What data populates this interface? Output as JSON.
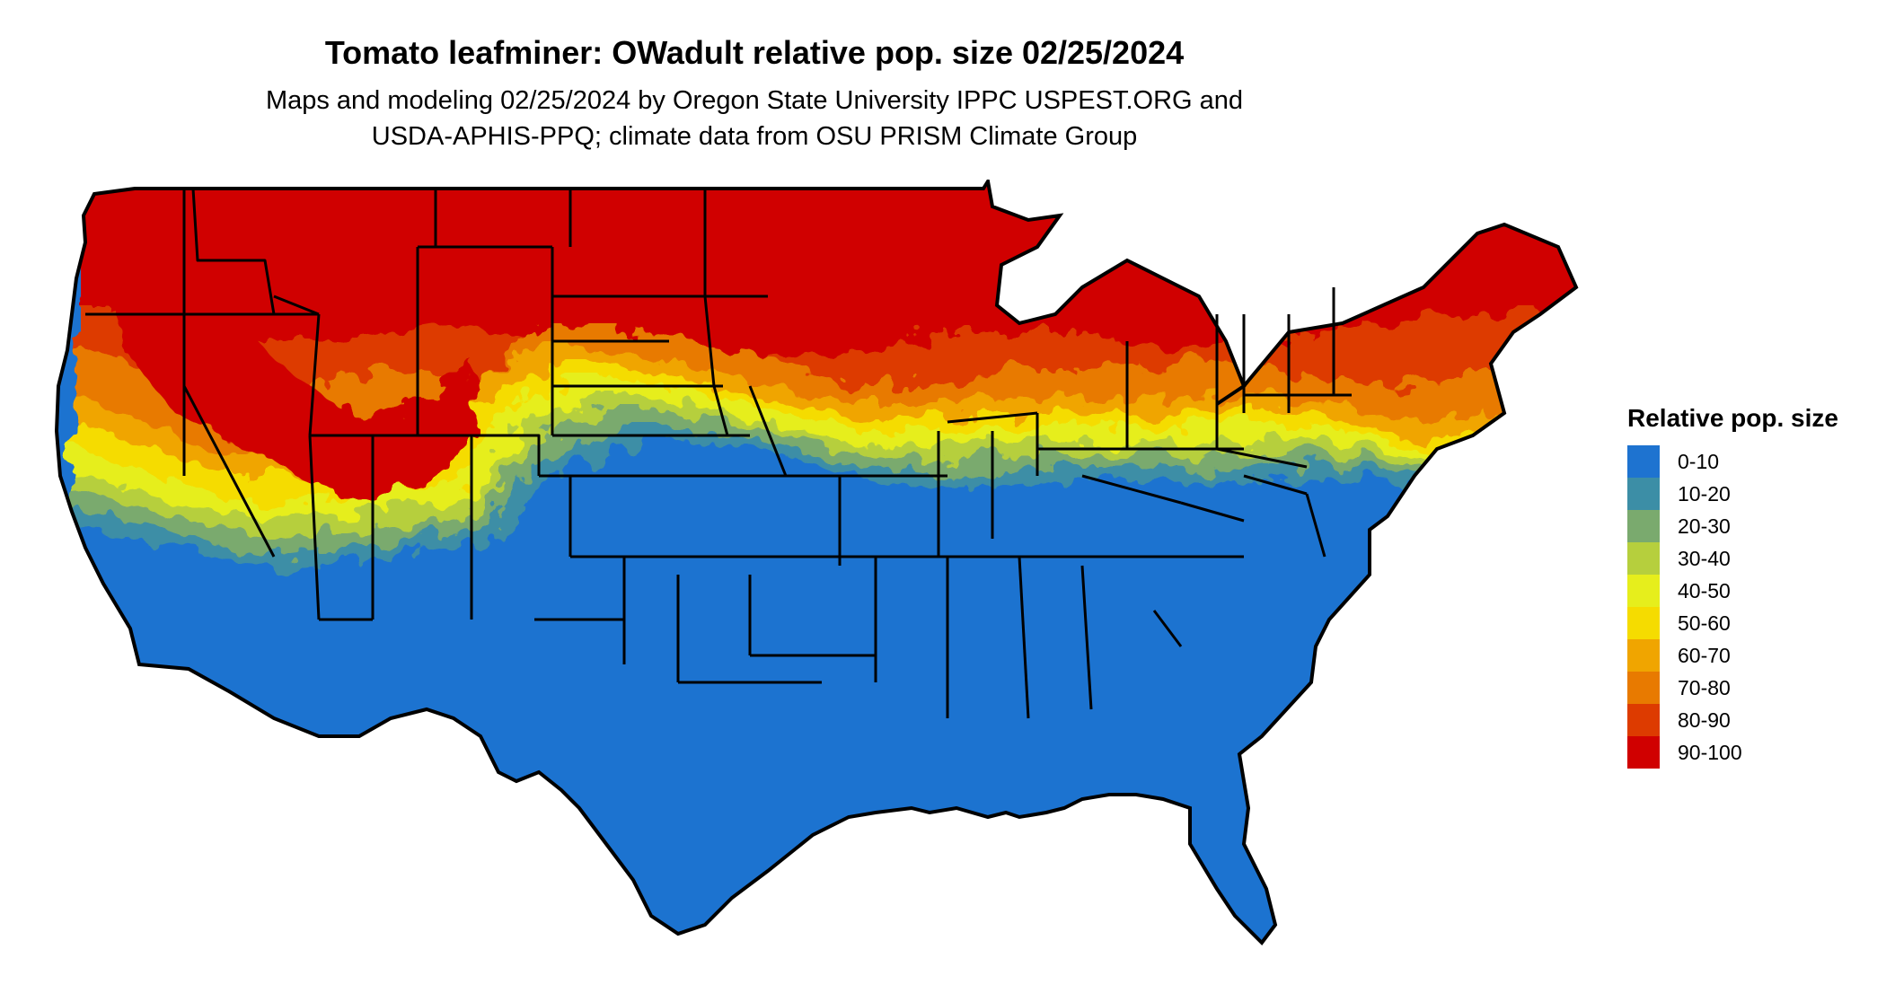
{
  "title": "Tomato leafminer: OWadult relative pop. size 02/25/2024",
  "subtitle_line1": "Maps and modeling 02/25/2024 by Oregon State University IPPC USPEST.ORG and",
  "subtitle_line2": "USDA-APHIS-PPQ; climate data from OSU PRISM Climate Group",
  "legend": {
    "title": "Relative pop. size",
    "items": [
      {
        "label": "0-10",
        "color": "#1e73d0"
      },
      {
        "label": "10-20",
        "color": "#3c8ea6"
      },
      {
        "label": "20-30",
        "color": "#7aaa6e"
      },
      {
        "label": "30-40",
        "color": "#b6cf3d"
      },
      {
        "label": "40-50",
        "color": "#e6ee1c"
      },
      {
        "label": "50-60",
        "color": "#f5dc00"
      },
      {
        "label": "60-70",
        "color": "#f0a500"
      },
      {
        "label": "70-80",
        "color": "#e87a00"
      },
      {
        "label": "80-90",
        "color": "#dd3b00"
      },
      {
        "label": "90-100",
        "color": "#d00000"
      }
    ]
  }
}
